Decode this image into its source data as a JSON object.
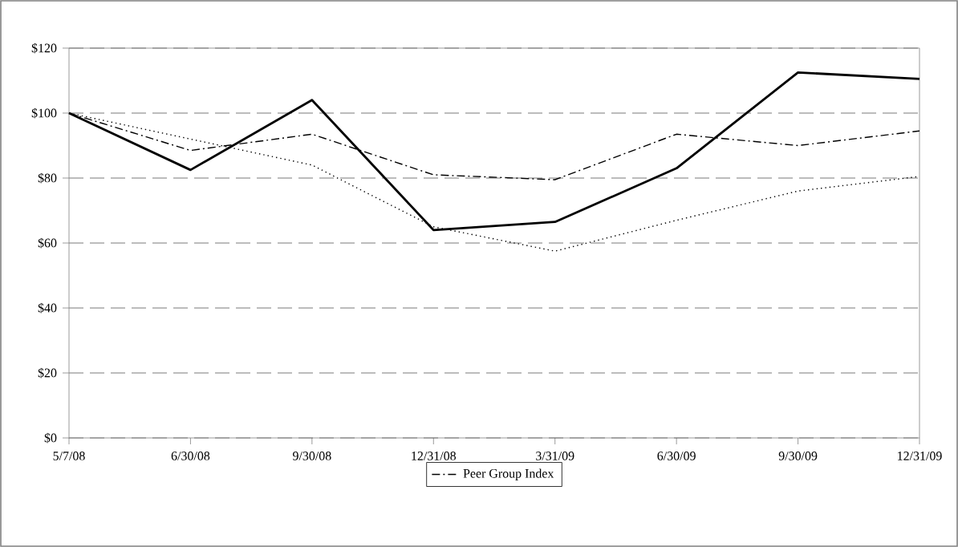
{
  "chart_data": {
    "type": "line",
    "categories": [
      "5/7/08",
      "6/30/08",
      "9/30/08",
      "12/31/08",
      "3/31/09",
      "6/30/09",
      "9/30/09",
      "12/31/09"
    ],
    "series": [
      {
        "color": "#000000",
        "line_style": "solid",
        "values": [
          100,
          82.5,
          104,
          64,
          66.5,
          83,
          112.5,
          110.5
        ]
      },
      {
        "name": "Peer Group Index",
        "color": "#000000",
        "line_style": "dashdot",
        "values": [
          100,
          88.5,
          93.5,
          81,
          79.5,
          93.5,
          90,
          94.5
        ]
      },
      {
        "color": "#000000",
        "line_style": "dotted",
        "values": [
          100,
          92,
          84,
          65,
          57.5,
          67,
          76,
          80.5
        ]
      }
    ],
    "ylim": [
      0,
      120
    ],
    "yticks": [
      {
        "value": 0,
        "label": "$0"
      },
      {
        "value": 20,
        "label": "$20"
      },
      {
        "value": 40,
        "label": "$40"
      },
      {
        "value": 60,
        "label": "$60"
      },
      {
        "value": 80,
        "label": "$80"
      },
      {
        "value": 100,
        "label": "$100"
      },
      {
        "value": 120,
        "label": "$120"
      }
    ],
    "grid": "y",
    "legend": "bottom",
    "marker": "none"
  }
}
